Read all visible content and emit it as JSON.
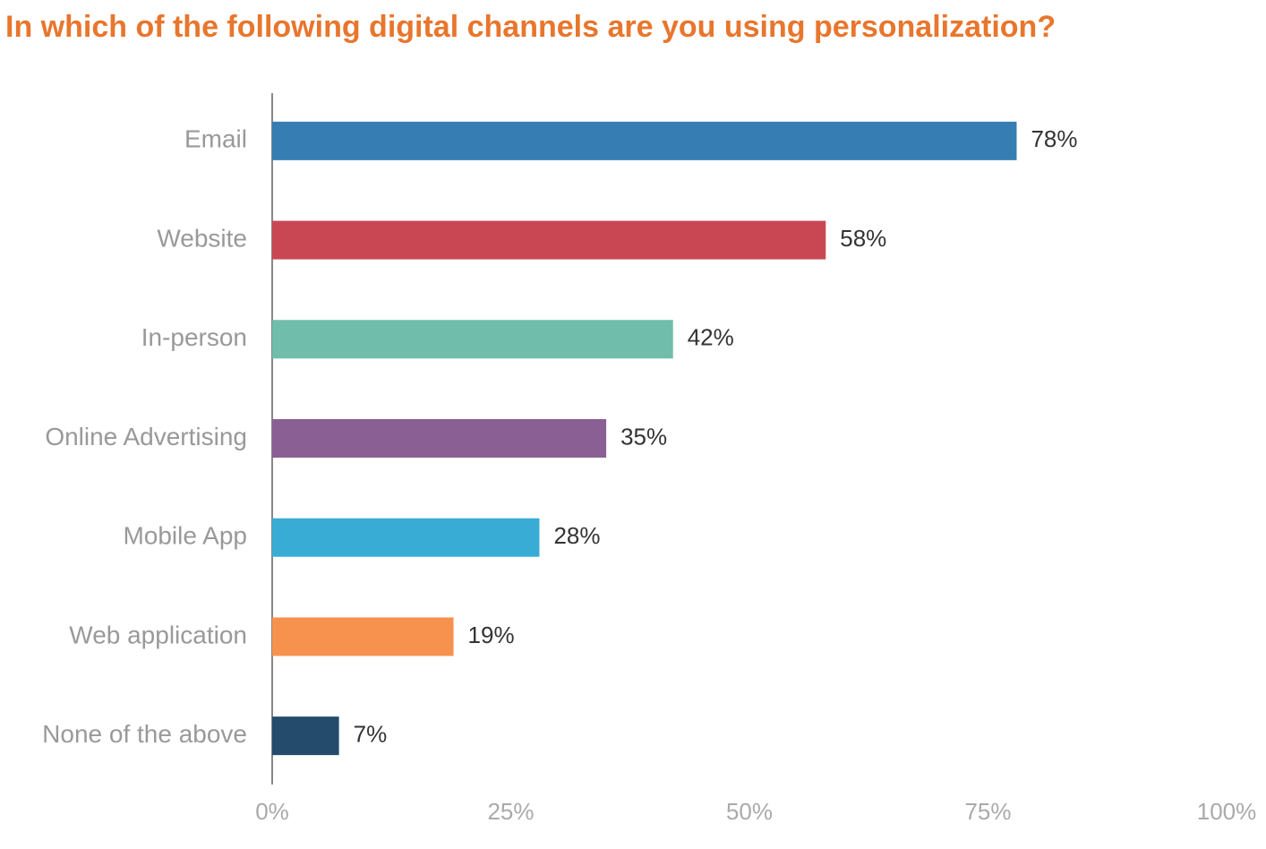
{
  "chart_data": {
    "type": "bar",
    "orientation": "horizontal",
    "title": "In which of the following digital channels are you using personalization?",
    "categories": [
      "Email",
      "Website",
      "In-person",
      "Online Advertising",
      "Mobile App",
      "Web application",
      "None of the above"
    ],
    "values": [
      78,
      58,
      42,
      35,
      28,
      19,
      7
    ],
    "value_labels": [
      "78%",
      "58%",
      "42%",
      "35%",
      "28%",
      "19%",
      "7%"
    ],
    "colors": [
      "#367db3",
      "#c94753",
      "#6fbdaa",
      "#8a6094",
      "#39acd6",
      "#f6924d",
      "#244b6b"
    ],
    "xlim": [
      0,
      100
    ],
    "xticks": [
      {
        "value": 0,
        "label": "0%"
      },
      {
        "value": 25,
        "label": "25%"
      },
      {
        "value": 50,
        "label": "50%"
      },
      {
        "value": 75,
        "label": "75%"
      },
      {
        "value": 100,
        "label": "100%"
      }
    ],
    "grid": false
  }
}
